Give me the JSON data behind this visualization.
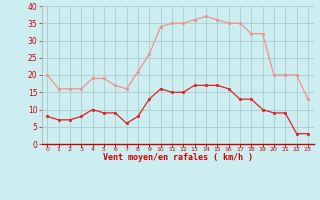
{
  "hours": [
    0,
    1,
    2,
    3,
    4,
    5,
    6,
    7,
    8,
    9,
    10,
    11,
    12,
    13,
    14,
    15,
    16,
    17,
    18,
    19,
    20,
    21,
    22,
    23
  ],
  "vent_moyen": [
    8,
    7,
    7,
    8,
    10,
    9,
    9,
    6,
    8,
    13,
    16,
    15,
    15,
    17,
    17,
    17,
    16,
    13,
    13,
    10,
    9,
    9,
    3,
    3
  ],
  "vent_rafales": [
    20,
    16,
    16,
    16,
    19,
    19,
    17,
    16,
    21,
    26,
    34,
    35,
    35,
    36,
    37,
    36,
    35,
    35,
    32,
    32,
    20,
    20,
    20,
    13
  ],
  "xlabel": "Vent moyen/en rafales ( km/h )",
  "ylim": [
    0,
    40
  ],
  "yticks": [
    0,
    5,
    10,
    15,
    20,
    25,
    30,
    35,
    40
  ],
  "bg_color": "#cceef0",
  "line_color_moyen": "#dd2222",
  "line_color_rafales": "#f09090",
  "grid_color": "#aacccc",
  "xlabel_color": "#cc0000",
  "tick_color": "#cc0000",
  "spine_bottom_color": "#cc0000"
}
